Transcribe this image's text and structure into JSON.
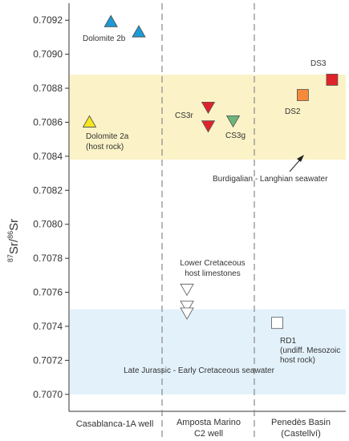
{
  "chart_data": {
    "type": "scatter",
    "ylabel_sup1": "87",
    "ylabel_mid": "Sr/",
    "ylabel_sup2": "86",
    "ylabel_end": "Sr",
    "ylim": [
      0.7069,
      0.7093
    ],
    "yticks": [
      "0.7070",
      "0.7072",
      "0.7074",
      "0.7076",
      "0.7078",
      "0.7080",
      "0.7082",
      "0.7084",
      "0.7086",
      "0.7088",
      "0.7090",
      "0.7092"
    ],
    "ytick_values": [
      0.707,
      0.7072,
      0.7074,
      0.7076,
      0.7078,
      0.708,
      0.7082,
      0.7084,
      0.7086,
      0.7088,
      0.709,
      0.7092
    ],
    "columns": [
      "Casablanca-1A well",
      "Amposta Marino C2 well",
      "Penedès Basin (Castellví)"
    ],
    "bands": [
      {
        "name": "Burdigalian - Langhian seawater",
        "y_min": 0.70838,
        "y_max": 0.70888,
        "color": "#fbf3c7"
      },
      {
        "name": "Late Jurassic - Early Cretaceous seawater",
        "y_min": 0.707,
        "y_max": 0.7075,
        "color": "#e3f1fb"
      }
    ],
    "series": [
      {
        "name": "Dolomite 2b",
        "marker": "triangle-up",
        "color": "#1e9ad6",
        "points": [
          {
            "column": 0,
            "x": 0.45,
            "y": 0.70919
          },
          {
            "column": 0,
            "x": 0.75,
            "y": 0.70913
          }
        ]
      },
      {
        "name": "Dolomite 2a (host rock)",
        "marker": "triangle-up",
        "color": "#f5e61e",
        "points": [
          {
            "column": 0,
            "x": 0.22,
            "y": 0.7086
          }
        ]
      },
      {
        "name": "CS3r",
        "marker": "triangle-down",
        "color": "#e0232b",
        "points": [
          {
            "column": 1,
            "x": 0.5,
            "y": 0.70869
          },
          {
            "column": 1,
            "x": 0.5,
            "y": 0.70858
          }
        ]
      },
      {
        "name": "CS3g",
        "marker": "triangle-down",
        "color": "#6db57b",
        "points": [
          {
            "column": 1,
            "x": 0.77,
            "y": 0.70861
          }
        ]
      },
      {
        "name": "DS2",
        "marker": "square",
        "color": "#f48a3a",
        "points": [
          {
            "column": 2,
            "x": 0.53,
            "y": 0.70876
          }
        ]
      },
      {
        "name": "DS3",
        "marker": "square",
        "color": "#e0232b",
        "points": [
          {
            "column": 2,
            "x": 0.85,
            "y": 0.70885
          }
        ]
      },
      {
        "name": "Lower Cretaceous host limestones",
        "marker": "triangle-down",
        "color": "#ffffff",
        "points": [
          {
            "column": 1,
            "x": 0.27,
            "y": 0.70762
          },
          {
            "column": 1,
            "x": 0.27,
            "y": 0.70752
          },
          {
            "column": 1,
            "x": 0.27,
            "y": 0.70748
          }
        ]
      },
      {
        "name": "RD1 (undiff. Mesozoic host rock)",
        "marker": "square",
        "color": "#ffffff",
        "points": [
          {
            "column": 2,
            "x": 0.25,
            "y": 0.70742
          }
        ]
      }
    ],
    "labels": {
      "dolomite2b": "Dolomite 2b",
      "dolomite2a_1": "Dolomite 2a",
      "dolomite2a_2": "(host rock)",
      "cs3r": "CS3r",
      "cs3g": "CS3g",
      "ds2": "DS2",
      "ds3": "DS3",
      "burdigalian": "Burdigalian - Langhian seawater",
      "lower_cret_1": "Lower Cretaceous",
      "lower_cret_2": "host limestones",
      "rd1_1": "RD1",
      "rd1_2": "(undiff. Mesozoic",
      "rd1_3": "host rock)",
      "late_jurassic": "Late Jurassic - Early Cretaceous seawater"
    },
    "column_labels": {
      "col1_line1": "Casablanca-1A well",
      "col2_line1": "Amposta Marino",
      "col2_line2": "C2 well",
      "col3_line1": "Penedès Basin",
      "col3_line2": "(Castellví)"
    },
    "grid": false
  }
}
